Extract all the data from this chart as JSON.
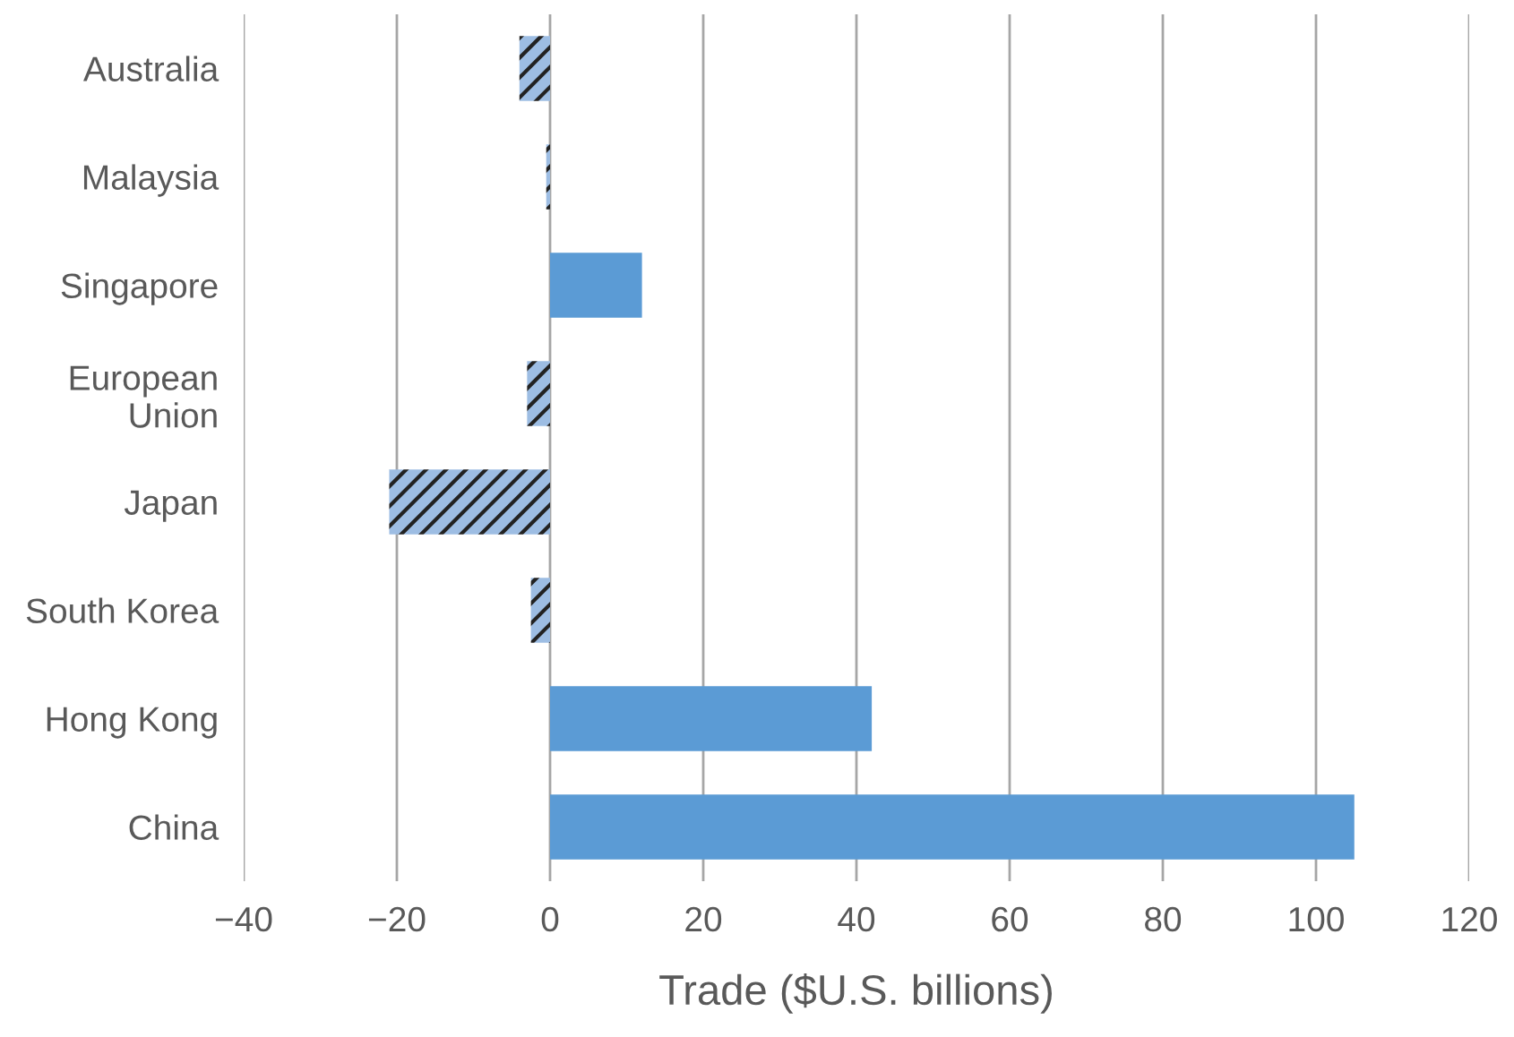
{
  "chart_data": {
    "type": "bar",
    "orientation": "horizontal",
    "xlabel": "Trade ($U.S. billions)",
    "categories": [
      "Australia",
      "Malaysia",
      "Singapore",
      "European\nUnion",
      "Japan",
      "South Korea",
      "Hong Kong",
      "China"
    ],
    "values": [
      -4,
      -0.5,
      12,
      -3,
      -21,
      -2.5,
      42,
      105
    ],
    "colors": [
      "#9dbde3",
      "#9dbde3",
      "#5b9bd5",
      "#9dbde3",
      "#9dbde3",
      "#9dbde3",
      "#5b9bd5",
      "#5b9bd5"
    ],
    "xlim": [
      -40,
      120
    ],
    "xticks": [
      {
        "value": -40,
        "label": "−40"
      },
      {
        "value": -20,
        "label": "−20"
      },
      0,
      20,
      40,
      60,
      80,
      100,
      120
    ],
    "grid": "x"
  }
}
